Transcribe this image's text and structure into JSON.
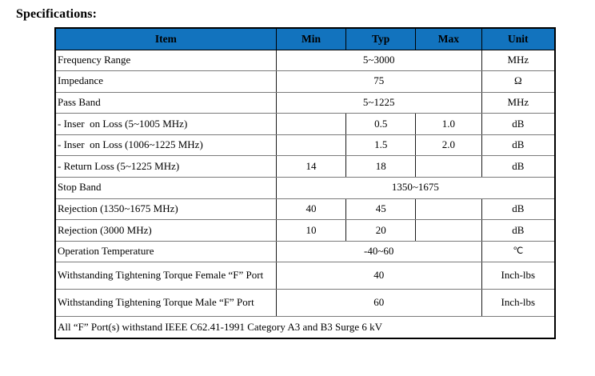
{
  "page": {
    "title": "Specifications:"
  },
  "colors": {
    "header_bg": "#1273be",
    "header_text": "#000000",
    "outer_border": "#000000",
    "inner_vertical_line": "#1a1a1a",
    "inner_horizontal_line": "#7a7a7a",
    "background": "#ffffff"
  },
  "table": {
    "columns": [
      "Item",
      "Min",
      "Typ",
      "Max",
      "Unit"
    ],
    "rows": [
      {
        "type": "span3",
        "item": "Frequency Range",
        "value": "5~3000",
        "unit": "MHz"
      },
      {
        "type": "span3",
        "item": "Impedance",
        "value": "75",
        "unit": "Ω"
      },
      {
        "type": "span3",
        "item": "Pass Band",
        "value": "5~1225",
        "unit": "MHz"
      },
      {
        "type": "split",
        "item": "- Inser  on Loss (5~1005 MHz)",
        "min": "",
        "typ": "0.5",
        "max": "1.0",
        "unit": "dB"
      },
      {
        "type": "split",
        "item": "- Inser  on Loss (1006~1225 MHz)",
        "min": "",
        "typ": "1.5",
        "max": "2.0",
        "unit": "dB"
      },
      {
        "type": "split",
        "item": "- Return Loss (5~1225 MHz)",
        "min": "14",
        "typ": "18",
        "max": "",
        "unit": "dB"
      },
      {
        "type": "span4",
        "item": "Stop Band",
        "value": "1350~1675"
      },
      {
        "type": "split",
        "item": "Rejection (1350~1675 MHz)",
        "min": "40",
        "typ": "45",
        "max": "",
        "unit": "dB"
      },
      {
        "type": "split",
        "item": "Rejection (3000 MHz)",
        "min": "10",
        "typ": "20",
        "max": "",
        "unit": "dB"
      },
      {
        "type": "span3",
        "item": "Operation Temperature",
        "value": "-40~60",
        "unit": "℃",
        "small_unit": true
      },
      {
        "type": "span3",
        "item": "Withstanding Tightening Torque Female “F” Port",
        "value": "40",
        "unit": "Inch-lbs",
        "tall": true
      },
      {
        "type": "span3",
        "item": "Withstanding Tightening Torque Male “F” Port",
        "value": "60",
        "unit": "Inch-lbs",
        "tall": true
      },
      {
        "type": "full",
        "item": "All “F” Port(s) withstand IEEE C62.41-1991 Category A3 and B3 Surge 6 kV"
      }
    ]
  }
}
